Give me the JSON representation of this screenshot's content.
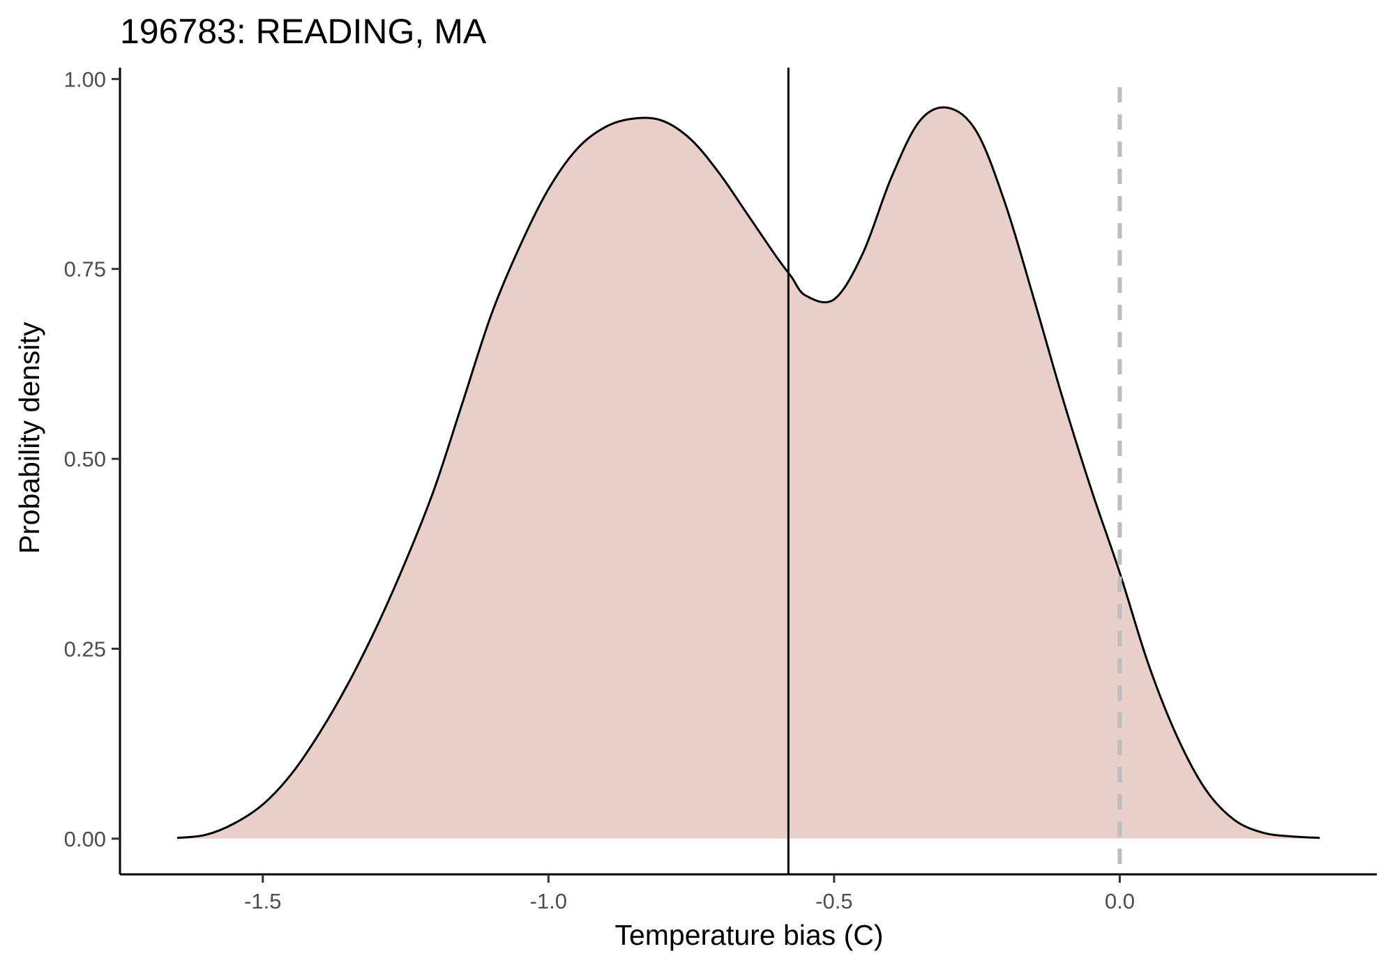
{
  "chart_data": {
    "type": "area",
    "title": "196783: READING, MA",
    "xlabel": "Temperature bias (C)",
    "ylabel": "Probability density",
    "xlim": [
      -1.75,
      0.45
    ],
    "ylim": [
      -0.047,
      1.015
    ],
    "x_ticks": [
      -1.5,
      -1.0,
      -0.5,
      0.0
    ],
    "x_tick_labels": [
      "-1.5",
      "-1.0",
      "-0.5",
      "0.0"
    ],
    "y_ticks": [
      0.0,
      0.25,
      0.5,
      0.75,
      1.0
    ],
    "y_tick_labels": [
      "0.00",
      "0.25",
      "0.50",
      "0.75",
      "1.00"
    ],
    "grid": false,
    "legend": "none",
    "series": [
      {
        "x": [
          -1.65,
          -1.6,
          -1.55,
          -1.5,
          -1.45,
          -1.4,
          -1.35,
          -1.3,
          -1.25,
          -1.2,
          -1.15,
          -1.1,
          -1.05,
          -1.0,
          -0.95,
          -0.9,
          -0.85,
          -0.8,
          -0.75,
          -0.7,
          -0.65,
          -0.6,
          -0.575,
          -0.55,
          -0.5,
          -0.45,
          -0.4,
          -0.35,
          -0.3,
          -0.25,
          -0.2,
          -0.15,
          -0.1,
          -0.05,
          0.0,
          0.05,
          0.1,
          0.15,
          0.2,
          0.25,
          0.3,
          0.35
        ],
        "y": [
          0.001,
          0.005,
          0.02,
          0.045,
          0.085,
          0.14,
          0.205,
          0.28,
          0.365,
          0.46,
          0.575,
          0.69,
          0.78,
          0.855,
          0.908,
          0.937,
          0.948,
          0.945,
          0.92,
          0.875,
          0.82,
          0.765,
          0.74,
          0.715,
          0.71,
          0.77,
          0.87,
          0.945,
          0.962,
          0.93,
          0.835,
          0.71,
          0.58,
          0.46,
          0.35,
          0.23,
          0.135,
          0.065,
          0.025,
          0.008,
          0.003,
          0.001
        ]
      }
    ],
    "annotations": [
      {
        "type": "vline",
        "x": -0.58,
        "style": "solid",
        "color": "#000000"
      },
      {
        "type": "vline",
        "x": 0.0,
        "style": "dashed",
        "color": "#bdbdbd"
      }
    ],
    "colors": {
      "fill": "#e8cfc8",
      "curve": "#000000",
      "axis": "#000000",
      "tick_text": "#4d4d4d"
    }
  }
}
